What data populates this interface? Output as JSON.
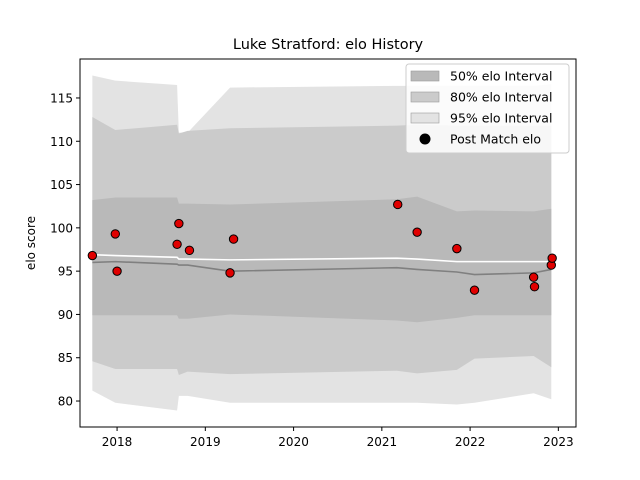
{
  "chart_data": {
    "type": "area",
    "title": "Luke Stratford: elo History",
    "xlabel": "",
    "ylabel": "elo score",
    "xlim": [
      2017.58,
      2023.2
    ],
    "ylim": [
      77.0,
      119.5
    ],
    "grid": false,
    "legend_position": "top-right",
    "x_ticks": [
      {
        "value": 2018,
        "label": "2018"
      },
      {
        "value": 2019,
        "label": "2019"
      },
      {
        "value": 2020,
        "label": "2020"
      },
      {
        "value": 2021,
        "label": "2021"
      },
      {
        "value": 2022,
        "label": "2022"
      },
      {
        "value": 2023,
        "label": "2023"
      }
    ],
    "y_ticks": [
      {
        "value": 80,
        "label": "80"
      },
      {
        "value": 85,
        "label": "85"
      },
      {
        "value": 90,
        "label": "90"
      },
      {
        "value": 95,
        "label": "95"
      },
      {
        "value": 100,
        "label": "100"
      },
      {
        "value": 105,
        "label": "105"
      },
      {
        "value": 110,
        "label": "110"
      },
      {
        "value": 115,
        "label": "115"
      }
    ],
    "x": [
      2017.72,
      2017.98,
      2018.68,
      2018.7,
      2018.8,
      2019.28,
      2021.17,
      2021.4,
      2021.85,
      2022.05,
      2022.72,
      2022.92
    ],
    "bands": [
      {
        "name": "95% elo Interval",
        "color": "#e3e3e3",
        "upper": [
          117.6,
          117.0,
          116.5,
          111.0,
          111.0,
          116.2,
          116.4,
          116.4,
          116.4,
          116.4,
          116.4,
          116.6
        ],
        "lower": [
          81.2,
          79.8,
          78.9,
          80.6,
          80.6,
          79.8,
          79.8,
          79.8,
          79.6,
          79.8,
          80.9,
          80.2
        ]
      },
      {
        "name": "80% elo Interval",
        "color": "#cbcbcb",
        "upper": [
          112.8,
          111.3,
          111.9,
          110.9,
          111.2,
          111.5,
          111.8,
          111.9,
          111.8,
          111.8,
          111.8,
          111.8
        ],
        "lower": [
          84.6,
          83.7,
          83.7,
          83.0,
          83.4,
          83.1,
          83.5,
          83.2,
          83.6,
          84.9,
          85.2,
          83.9
        ]
      },
      {
        "name": "50% elo Interval",
        "color": "#b9b9b9",
        "upper": [
          103.2,
          103.5,
          103.5,
          102.8,
          102.8,
          102.7,
          103.3,
          103.6,
          101.9,
          102.0,
          101.9,
          102.2
        ],
        "lower": [
          89.9,
          89.9,
          89.9,
          89.5,
          89.5,
          90.0,
          89.3,
          89.1,
          89.6,
          89.9,
          89.9,
          89.9
        ]
      }
    ],
    "lines": [
      {
        "name": "median elo",
        "color": "#808080",
        "y": [
          96.0,
          96.1,
          95.8,
          95.7,
          95.7,
          95.0,
          95.4,
          95.2,
          94.9,
          94.6,
          94.8,
          95.2
        ]
      },
      {
        "name": "mean elo",
        "color": "#ffffff",
        "y": [
          96.9,
          96.8,
          96.6,
          96.4,
          96.4,
          96.3,
          96.5,
          96.4,
          96.1,
          96.1,
          96.1,
          96.1
        ]
      }
    ],
    "points": {
      "name": "Post Match elo",
      "color": "#e00000",
      "x": [
        2017.72,
        2017.98,
        2018.0,
        2018.68,
        2018.7,
        2018.82,
        2019.28,
        2019.32,
        2021.18,
        2021.4,
        2021.85,
        2022.05,
        2022.72,
        2022.73,
        2022.92,
        2022.93
      ],
      "y": [
        96.8,
        99.3,
        95.0,
        98.1,
        100.5,
        97.4,
        94.8,
        98.7,
        102.7,
        99.5,
        97.6,
        92.8,
        94.3,
        93.2,
        95.7,
        96.5
      ]
    },
    "legend": [
      {
        "label": "50% elo Interval",
        "color": "#b9b9b9",
        "kind": "patch"
      },
      {
        "label": "80% elo Interval",
        "color": "#cbcbcb",
        "kind": "patch"
      },
      {
        "label": "95% elo Interval",
        "color": "#e3e3e3",
        "kind": "patch"
      },
      {
        "label": "Post Match elo",
        "color": "#000000",
        "kind": "marker"
      }
    ]
  }
}
